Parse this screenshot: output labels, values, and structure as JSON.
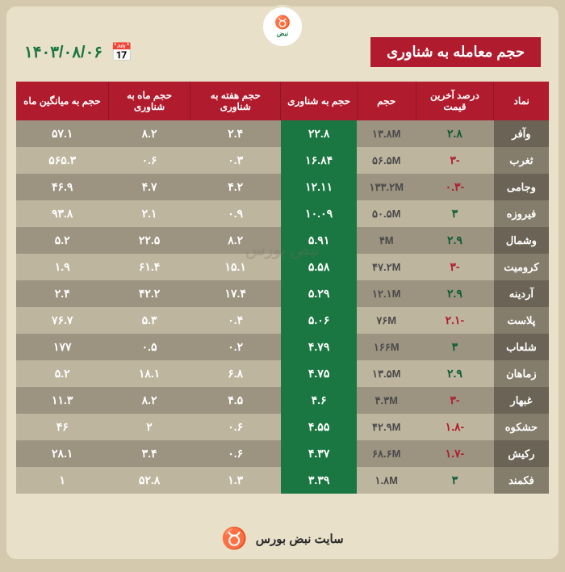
{
  "brand": {
    "top_label": "نبض",
    "sub_label": "بورس"
  },
  "title": "حجم معامله به شناوری",
  "date": "۱۴۰۳/۰۸/۰۶",
  "watermark": "نبض بورس",
  "footer": "سایت نبض بورس",
  "columns": [
    "نماد",
    "درصد آخرین قیمت",
    "حجم",
    "حجم به شناوری",
    "حجم هفته به شناوری",
    "حجم ماه به شناوری",
    "حجم به میانگین ماه"
  ],
  "rows": [
    {
      "sym": "وآفر",
      "pct": "۲.۸",
      "pct_sign": "pos",
      "vol": "۱۳.۸M",
      "float": "۲۲.۸",
      "wk": "۲.۴",
      "mo": "۸.۲",
      "avg": "۵۷.۱"
    },
    {
      "sym": "ثغرب",
      "pct": "-۳",
      "pct_sign": "neg",
      "vol": "۵۶.۵M",
      "float": "۱۶.۸۴",
      "wk": "۰.۳",
      "mo": "۰.۶",
      "avg": "۵۶۵.۳"
    },
    {
      "sym": "وجامی",
      "pct": "-۰.۳",
      "pct_sign": "neg",
      "vol": "۱۳۳.۲M",
      "float": "۱۲.۱۱",
      "wk": "۴.۲",
      "mo": "۴.۷",
      "avg": "۴۶.۹"
    },
    {
      "sym": "فیروزه",
      "pct": "۳",
      "pct_sign": "pos",
      "vol": "۵۰.۵M",
      "float": "۱۰.۰۹",
      "wk": "۰.۹",
      "mo": "۲.۱",
      "avg": "۹۳.۸"
    },
    {
      "sym": "وشمال",
      "pct": "۲.۹",
      "pct_sign": "pos",
      "vol": "۴M",
      "float": "۵.۹۱",
      "wk": "۸.۲",
      "mo": "۲۲.۵",
      "avg": "۵.۲"
    },
    {
      "sym": "کرومیت",
      "pct": "-۳",
      "pct_sign": "neg",
      "vol": "۴۷.۲M",
      "float": "۵.۵۸",
      "wk": "۱۵.۱",
      "mo": "۶۱.۴",
      "avg": "۱.۹"
    },
    {
      "sym": "آردینه",
      "pct": "۲.۹",
      "pct_sign": "pos",
      "vol": "۱۲.۱M",
      "float": "۵.۲۹",
      "wk": "۱۷.۴",
      "mo": "۴۲.۲",
      "avg": "۲.۴"
    },
    {
      "sym": "پلاست",
      "pct": "-۲.۱",
      "pct_sign": "neg",
      "vol": "۷۶M",
      "float": "۵.۰۶",
      "wk": "۰.۴",
      "mo": "۵.۳",
      "avg": "۷۶.۷"
    },
    {
      "sym": "شلعاب",
      "pct": "۳",
      "pct_sign": "pos",
      "vol": "۱۶۶M",
      "float": "۴.۷۹",
      "wk": "۰.۲",
      "mo": "۰.۵",
      "avg": "۱۷۷"
    },
    {
      "sym": "زماهان",
      "pct": "۲.۹",
      "pct_sign": "pos",
      "vol": "۱۳.۵M",
      "float": "۴.۷۵",
      "wk": "۶.۸",
      "mo": "۱۸.۱",
      "avg": "۵.۲"
    },
    {
      "sym": "غبهار",
      "pct": "-۳",
      "pct_sign": "neg",
      "vol": "۴.۳M",
      "float": "۴.۶",
      "wk": "۴.۵",
      "mo": "۸.۲",
      "avg": "۱۱.۳"
    },
    {
      "sym": "حشکوه",
      "pct": "-۱.۸",
      "pct_sign": "neg",
      "vol": "۴۲.۹M",
      "float": "۴.۵۵",
      "wk": "۰.۶",
      "mo": "۲",
      "avg": "۴۶"
    },
    {
      "sym": "رکیش",
      "pct": "-۱.۷",
      "pct_sign": "neg",
      "vol": "۶۸.۶M",
      "float": "۴.۳۷",
      "wk": "۰.۶",
      "mo": "۳.۴",
      "avg": "۲۸.۱"
    },
    {
      "sym": "فکمند",
      "pct": "۳",
      "pct_sign": "pos",
      "vol": "۱.۸M",
      "float": "۳.۳۹",
      "wk": "۱.۳",
      "mo": "۵۲.۸",
      "avg": "۱"
    }
  ],
  "styling": {
    "page_bg": "#d4c9ad",
    "card_bg": "#e8e0c8",
    "title_bg": "#b01c2e",
    "header_bg": "#b01c2e",
    "highlight_bg": "#1a7741",
    "row_a_bg": "#9c9381",
    "row_b_bg": "#beb59f",
    "pos_color": "#0d5d34",
    "neg_color": "#b01c2e",
    "date_color": "#1a7741"
  }
}
